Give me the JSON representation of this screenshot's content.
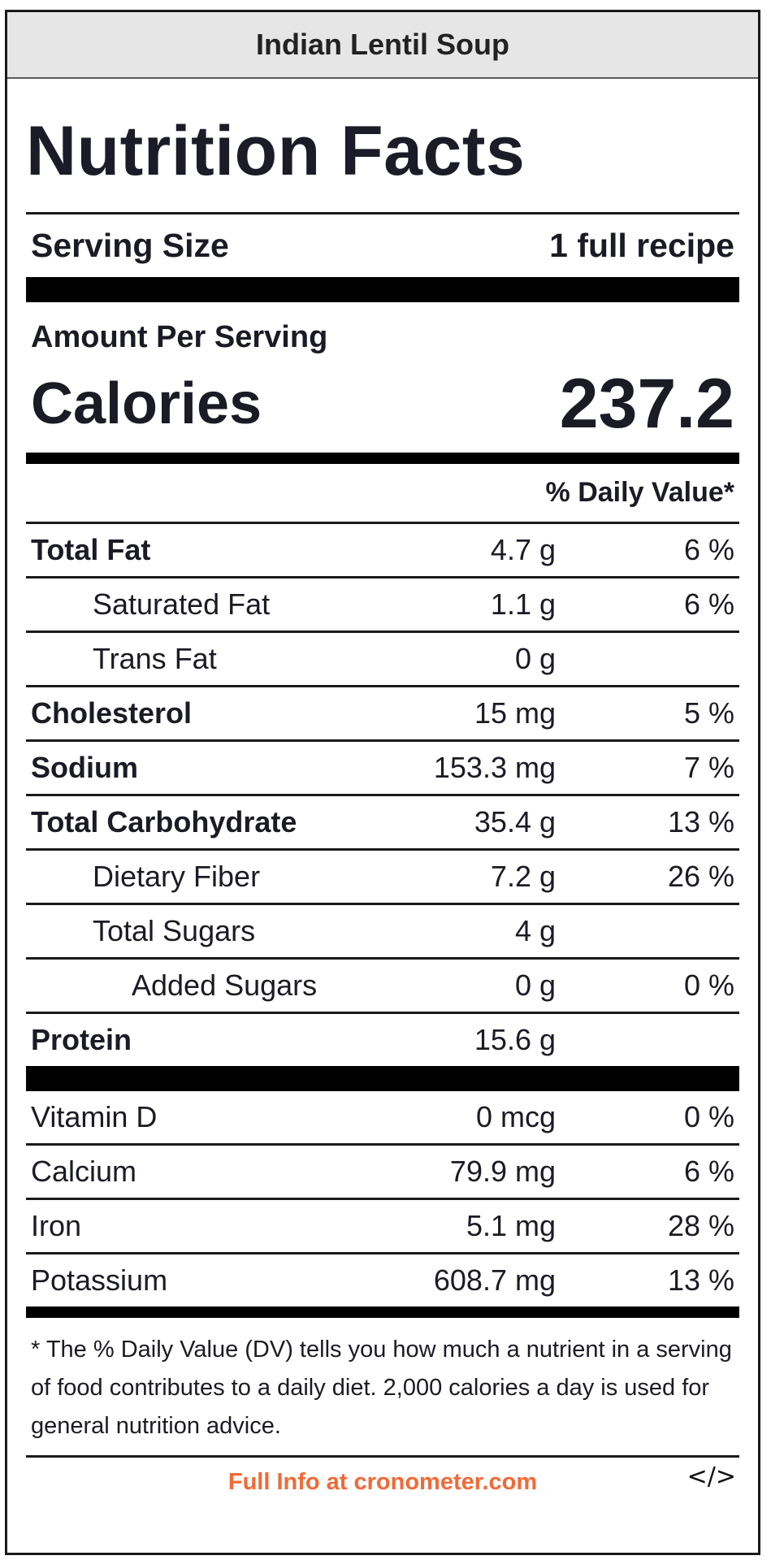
{
  "title": "Indian Lentil Soup",
  "heading": "Nutrition Facts",
  "serving": {
    "label": "Serving Size",
    "value": "1 full recipe"
  },
  "amount_per_serving": "Amount Per Serving",
  "calories": {
    "label": "Calories",
    "value": "237.2"
  },
  "dv_header": "% Daily Value*",
  "nutrients": [
    {
      "name": "Total Fat",
      "amount": "4.7 g",
      "dv": "6 %"
    },
    {
      "name": "Saturated Fat",
      "amount": "1.1 g",
      "dv": "6 %"
    },
    {
      "name": "Trans Fat",
      "amount": "0 g",
      "dv": ""
    },
    {
      "name": "Cholesterol",
      "amount": "15 mg",
      "dv": "5 %"
    },
    {
      "name": "Sodium",
      "amount": "153.3 mg",
      "dv": "7 %"
    },
    {
      "name": "Total Carbohydrate",
      "amount": "35.4 g",
      "dv": "13 %"
    },
    {
      "name": "Dietary Fiber",
      "amount": "7.2 g",
      "dv": "26 %"
    },
    {
      "name": "Total Sugars",
      "amount": "4 g",
      "dv": ""
    },
    {
      "name": "Added Sugars",
      "amount": "0 g",
      "dv": "0 %"
    },
    {
      "name": "Protein",
      "amount": "15.6 g",
      "dv": ""
    }
  ],
  "vitamins": [
    {
      "name": "Vitamin D",
      "amount": "0 mcg",
      "dv": "0 %"
    },
    {
      "name": "Calcium",
      "amount": "79.9 mg",
      "dv": "6 %"
    },
    {
      "name": "Iron",
      "amount": "5.1 mg",
      "dv": "28 %"
    },
    {
      "name": "Potassium",
      "amount": "608.7 mg",
      "dv": "13 %"
    }
  ],
  "footnote": "* The % Daily Value (DV) tells you how much a nutrient in a serving of food contributes to a daily diet. 2,000 calories a day is used for general nutrition advice.",
  "link_text": "Full Info at cronometer.com",
  "embed_symbol": "</>",
  "colors": {
    "link": "#f06a37",
    "title_bar": "#e6e6e6",
    "text": "#1b1b25"
  }
}
